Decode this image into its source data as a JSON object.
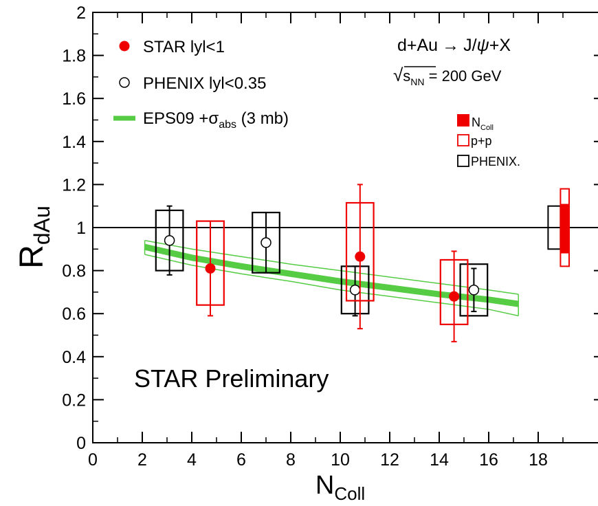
{
  "chart_data": {
    "type": "scatter",
    "title": "",
    "xlabel": {
      "main": "N",
      "sub": "Coll"
    },
    "ylabel": {
      "main": "R",
      "sub": "dAu"
    },
    "xlim": [
      0,
      19.2
    ],
    "ylim": [
      0,
      2
    ],
    "x_ticks": [
      "0",
      "2",
      "4",
      "6",
      "8",
      "10",
      "12",
      "14",
      "16",
      "18"
    ],
    "y_ticks": [
      "0",
      "0.2",
      "0.4",
      "0.6",
      "0.8",
      "1",
      "1.2",
      "1.4",
      "1.6",
      "1.8",
      "2"
    ],
    "reference_line": 1,
    "annotation": "STAR Preliminary",
    "reaction": {
      "lhs": "d+Au",
      "arrow": "→",
      "rhs_pre": "J/",
      "psi": "ψ",
      "rhs_post": "+X"
    },
    "energy": {
      "sqrt": "√",
      "s": "s",
      "sub": "NN",
      "value": " = 200 GeV"
    },
    "legend": {
      "star": "STAR lyl<1",
      "phenix": "PHENIX lyl<0.35",
      "eps_pre": "EPS09 +σ",
      "eps_sub": "abs",
      "eps_post": " (3 mb)"
    },
    "box_legend": {
      "ncoll_main": "N",
      "ncoll_sub": "Coll",
      "pp": "p+p",
      "phenix": "PHENIX."
    },
    "colors": {
      "star": "#ee0000",
      "phenix": "#000000",
      "model": "#55cc44"
    },
    "series": [
      {
        "name": "STAR lyl<1",
        "points": [
          {
            "x": 4.75,
            "y": 0.81,
            "err_lo": 0.59,
            "err_hi": 1.03,
            "sys_lo": 0.64,
            "sys_hi": 1.03
          },
          {
            "x": 10.8,
            "y": 0.865,
            "err_lo": 0.53,
            "err_hi": 1.2,
            "sys_lo": 0.66,
            "sys_hi": 1.115
          },
          {
            "x": 14.6,
            "y": 0.68,
            "err_lo": 0.47,
            "err_hi": 0.89,
            "sys_lo": 0.55,
            "sys_hi": 0.85
          }
        ]
      },
      {
        "name": "PHENIX lyl<0.35",
        "points": [
          {
            "x": 3.1,
            "y": 0.94,
            "err_lo": 0.78,
            "err_hi": 1.1,
            "sys_lo": 0.8,
            "sys_hi": 1.08
          },
          {
            "x": 7.0,
            "y": 0.93,
            "err_lo": 0.79,
            "err_hi": 1.07,
            "sys_lo": 0.79,
            "sys_hi": 1.07
          },
          {
            "x": 10.6,
            "y": 0.71,
            "err_lo": 0.59,
            "err_hi": 0.82,
            "sys_lo": 0.6,
            "sys_hi": 0.82
          },
          {
            "x": 15.4,
            "y": 0.71,
            "err_lo": 0.61,
            "err_hi": 0.81,
            "sys_lo": 0.59,
            "sys_hi": 0.83
          }
        ]
      },
      {
        "name": "EPS09 +σabs (3 mb)",
        "x": [
          2.1,
          4,
          6,
          8,
          10,
          12,
          14,
          16,
          17.2
        ],
        "central": [
          0.91,
          0.86,
          0.82,
          0.785,
          0.75,
          0.72,
          0.69,
          0.665,
          0.645
        ],
        "upper": [
          0.94,
          0.9,
          0.865,
          0.83,
          0.8,
          0.77,
          0.74,
          0.71,
          0.69
        ],
        "lower": [
          0.875,
          0.825,
          0.785,
          0.75,
          0.71,
          0.68,
          0.65,
          0.62,
          0.59
        ]
      }
    ],
    "normalization_boxes": [
      {
        "name": "PHENIX.",
        "x_lo": 18.4,
        "x_hi": 18.9,
        "y_lo": 0.9,
        "y_hi": 1.1
      },
      {
        "name": "p+p",
        "x_lo": 18.9,
        "x_hi": 19.25,
        "y_lo": 0.82,
        "y_hi": 1.18
      },
      {
        "name": "NColl",
        "x_lo": 18.9,
        "x_hi": 19.25,
        "y_lo": 0.88,
        "y_hi": 1.11
      }
    ]
  }
}
